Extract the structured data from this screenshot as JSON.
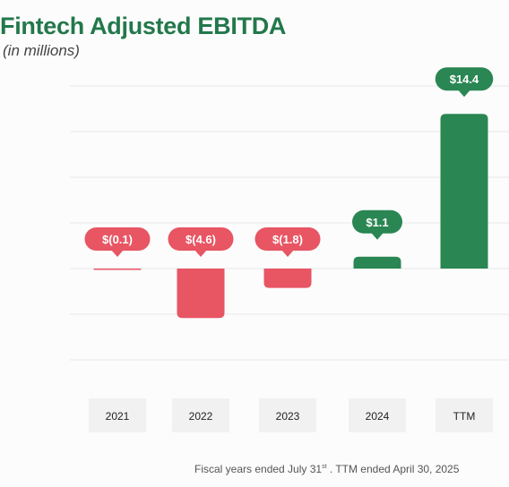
{
  "title": "Fintech Adjusted EBITDA",
  "subtitle": "(in millions)",
  "footnote": {
    "prefix": "Fiscal years  ended July 31",
    "sup": "st",
    "suffix": " .  TTM ended April 30, 2025"
  },
  "colors": {
    "title": "#23784b",
    "positive": "#2a8652",
    "negative": "#e85563",
    "grid": "#e9e9e9",
    "category_box": "#f1f1f1"
  },
  "chart_data": {
    "type": "bar",
    "title": "Fintech Adjusted EBITDA",
    "subtitle": "(in millions)",
    "categories": [
      "2021",
      "2022",
      "2023",
      "2024",
      "TTM"
    ],
    "values": [
      -0.1,
      -4.6,
      -1.8,
      1.1,
      14.4
    ],
    "data_labels": [
      "$(0.1)",
      "$(4.6)",
      "$(1.8)",
      "$1.1",
      "$14.4"
    ],
    "ylim": [
      -8.5,
      17.5
    ],
    "grid": true,
    "legend": "none"
  }
}
